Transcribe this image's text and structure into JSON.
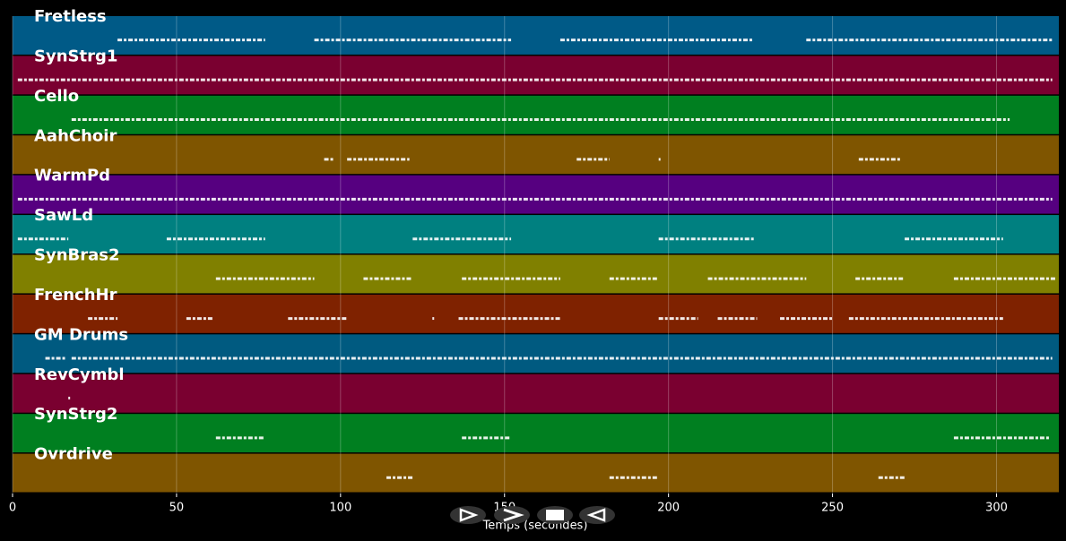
{
  "chart_data": {
    "type": "pianoroll",
    "xlabel": "Temps (secondes)",
    "xlim": [
      0,
      319
    ],
    "xticks": [
      0,
      50,
      100,
      150,
      200,
      250,
      300
    ],
    "grid": true,
    "tracks": [
      {
        "name": "Fretless",
        "color": "#005a87",
        "notes": [
          [
            32,
            77
          ],
          [
            92,
            152
          ],
          [
            167,
            226
          ],
          [
            242,
            317
          ]
        ]
      },
      {
        "name": "SynStrg1",
        "color": "#7a0030",
        "notes": [
          [
            1.6,
            317
          ]
        ]
      },
      {
        "name": "Cello",
        "color": "#007f20",
        "notes": [
          [
            18,
            304
          ]
        ]
      },
      {
        "name": "AahChoir",
        "color": "#7f5500",
        "notes": [
          [
            95,
            98
          ],
          [
            102,
            121
          ],
          [
            172,
            182
          ],
          [
            197,
            197.5
          ],
          [
            258,
            271
          ]
        ]
      },
      {
        "name": "WarmPd",
        "color": "#560080",
        "notes": [
          [
            1.6,
            317
          ]
        ]
      },
      {
        "name": "SawLd",
        "color": "#008080",
        "notes": [
          [
            1.6,
            17
          ],
          [
            47,
            77
          ],
          [
            122,
            152
          ],
          [
            197,
            226
          ],
          [
            272,
            302
          ]
        ]
      },
      {
        "name": "SynBras2",
        "color": "#808000",
        "notes": [
          [
            62,
            92
          ],
          [
            107,
            122
          ],
          [
            137,
            167
          ],
          [
            182,
            197
          ],
          [
            212,
            242
          ],
          [
            257,
            272
          ],
          [
            287,
            318
          ]
        ]
      },
      {
        "name": "FrenchHr",
        "color": "#7f2200",
        "notes": [
          [
            23,
            32
          ],
          [
            53,
            61
          ],
          [
            84,
            102
          ],
          [
            128,
            128.5
          ],
          [
            136,
            167
          ],
          [
            197,
            209
          ],
          [
            215,
            227
          ],
          [
            234,
            250
          ],
          [
            255,
            302
          ]
        ]
      },
      {
        "name": "GM Drums",
        "color": "#005a80",
        "notes": [
          [
            10,
            16
          ],
          [
            18,
            317
          ]
        ]
      },
      {
        "name": "RevCymbl",
        "color": "#7a0030",
        "notes": [
          [
            17,
            17.5
          ]
        ]
      },
      {
        "name": "SynStrg2",
        "color": "#007f20",
        "notes": [
          [
            62,
            77
          ],
          [
            137,
            152
          ],
          [
            287,
            316
          ]
        ]
      },
      {
        "name": "Ovrdrive",
        "color": "#7f5500",
        "notes": [
          [
            114,
            122
          ],
          [
            182,
            197
          ],
          [
            264,
            272
          ]
        ]
      }
    ]
  }
}
